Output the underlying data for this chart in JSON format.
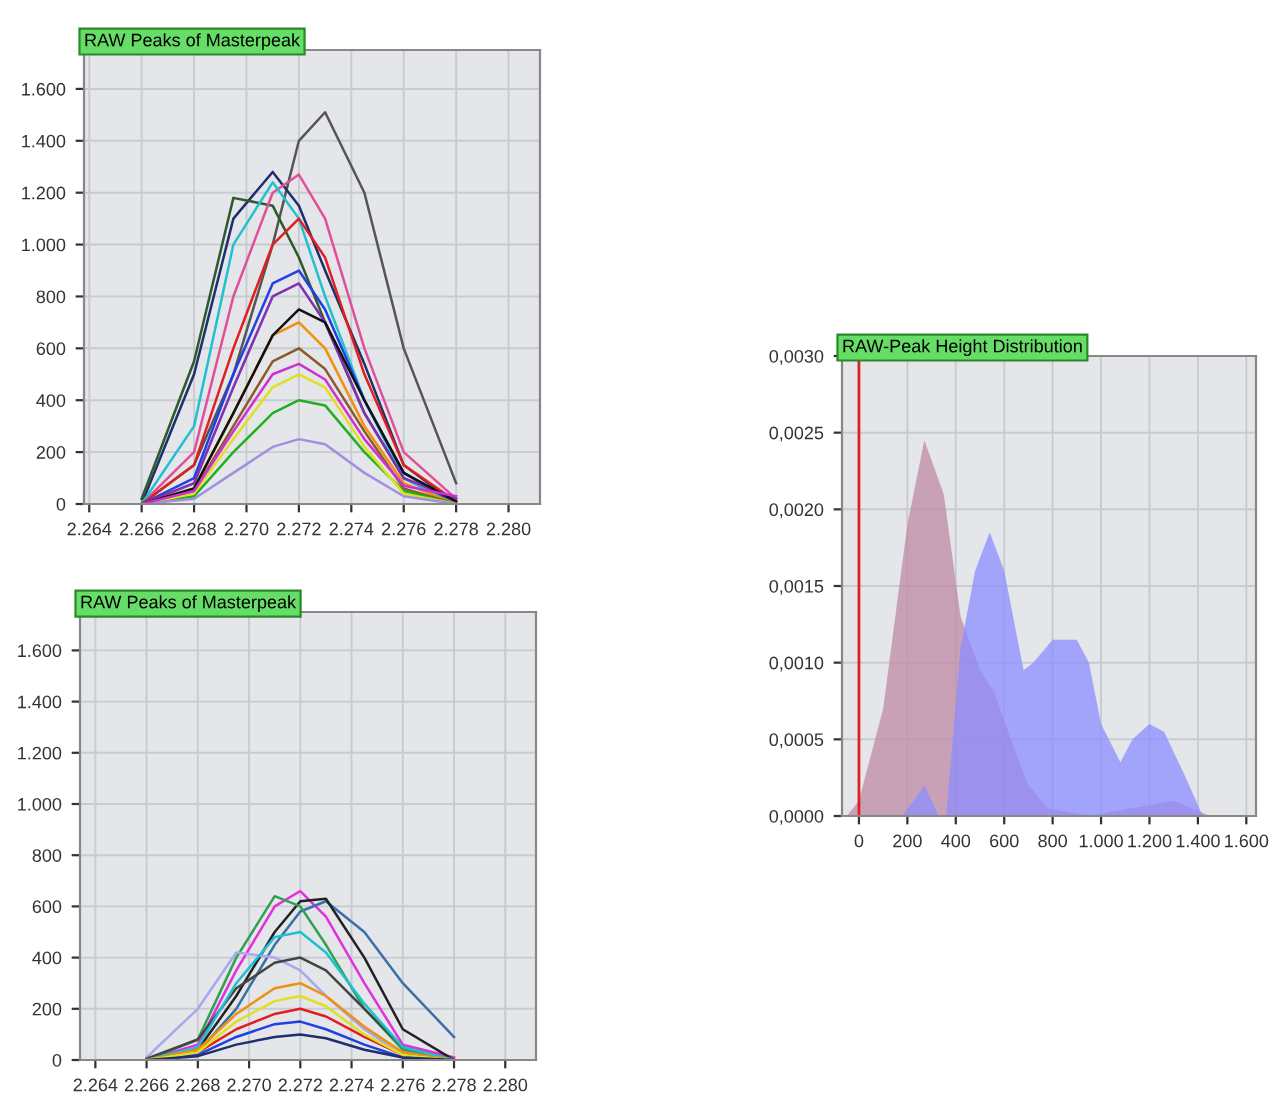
{
  "chart_data": [
    {
      "type": "line",
      "title": "RAW Peaks of Masterpeak",
      "grid": true,
      "x": [
        2266,
        2268,
        2269.5,
        2271,
        2272,
        2273,
        2274.5,
        2276,
        2278
      ],
      "xlim": [
        2263.8,
        2281.2
      ],
      "xticks": [
        {
          "value": 2264,
          "label": "2.264"
        },
        {
          "value": 2266,
          "label": "2.266"
        },
        {
          "value": 2268,
          "label": "2.268"
        },
        {
          "value": 2270,
          "label": "2.270"
        },
        {
          "value": 2272,
          "label": "2.272"
        },
        {
          "value": 2274,
          "label": "2.274"
        },
        {
          "value": 2276,
          "label": "2.276"
        },
        {
          "value": 2278,
          "label": "2.278"
        },
        {
          "value": 2280,
          "label": "2.280"
        }
      ],
      "ylim": [
        0,
        1750
      ],
      "yticks": [
        0,
        200,
        400,
        600,
        800,
        {
          "value": 1000,
          "label": "1.000"
        },
        {
          "value": 1200,
          "label": "1.200"
        },
        {
          "value": 1400,
          "label": "1.400"
        },
        {
          "value": 1600,
          "label": "1.600"
        }
      ],
      "series": [
        {
          "color": "#555555",
          "values": [
            0,
            150,
            500,
            1000,
            1400,
            1510,
            1200,
            600,
            80
          ]
        },
        {
          "color": "#1f2f6e",
          "values": [
            0,
            500,
            1100,
            1280,
            1150,
            900,
            540,
            150,
            0
          ]
        },
        {
          "color": "#2e5a2e",
          "values": [
            20,
            550,
            1180,
            1150,
            950,
            700,
            350,
            100,
            0
          ]
        },
        {
          "color": "#e0509a",
          "values": [
            0,
            200,
            800,
            1200,
            1270,
            1100,
            600,
            200,
            20
          ]
        },
        {
          "color": "#20c0d0",
          "values": [
            0,
            300,
            1000,
            1240,
            1100,
            800,
            400,
            100,
            0
          ]
        },
        {
          "color": "#e02020",
          "values": [
            0,
            150,
            600,
            1000,
            1100,
            950,
            500,
            150,
            10
          ]
        },
        {
          "color": "#2040e0",
          "values": [
            0,
            100,
            500,
            850,
            900,
            750,
            400,
            120,
            0
          ]
        },
        {
          "color": "#8030b0",
          "values": [
            0,
            80,
            450,
            800,
            850,
            700,
            350,
            100,
            20
          ]
        },
        {
          "color": "#f09010",
          "values": [
            0,
            60,
            350,
            650,
            700,
            600,
            300,
            80,
            0
          ]
        },
        {
          "color": "#8a5a2a",
          "values": [
            0,
            50,
            300,
            550,
            600,
            520,
            280,
            60,
            0
          ]
        },
        {
          "color": "#20b020",
          "values": [
            0,
            30,
            200,
            350,
            400,
            380,
            200,
            50,
            0
          ]
        },
        {
          "color": "#e0e020",
          "values": [
            0,
            40,
            250,
            450,
            500,
            450,
            220,
            40,
            0
          ]
        },
        {
          "color": "#111111",
          "values": [
            0,
            60,
            350,
            650,
            750,
            700,
            400,
            120,
            10
          ]
        },
        {
          "color": "#a090e0",
          "values": [
            0,
            20,
            120,
            220,
            250,
            230,
            120,
            30,
            0
          ]
        },
        {
          "color": "#d030d0",
          "values": [
            0,
            50,
            280,
            500,
            540,
            480,
            250,
            70,
            30
          ]
        }
      ]
    },
    {
      "type": "line",
      "title": "RAW Peaks of Masterpeak",
      "grid": true,
      "x": [
        2266,
        2268,
        2269.5,
        2271,
        2272,
        2273,
        2274.5,
        2276,
        2278
      ],
      "xlim": [
        2263.4,
        2281.2
      ],
      "xticks": [
        {
          "value": 2264,
          "label": "2.264"
        },
        {
          "value": 2266,
          "label": "2.266"
        },
        {
          "value": 2268,
          "label": "2.268"
        },
        {
          "value": 2270,
          "label": "2.270"
        },
        {
          "value": 2272,
          "label": "2.272"
        },
        {
          "value": 2274,
          "label": "2.274"
        },
        {
          "value": 2276,
          "label": "2.276"
        },
        {
          "value": 2278,
          "label": "2.278"
        },
        {
          "value": 2280,
          "label": "2.280"
        }
      ],
      "ylim": [
        0,
        1750
      ],
      "yticks": [
        0,
        200,
        400,
        600,
        800,
        {
          "value": 1000,
          "label": "1.000"
        },
        {
          "value": 1200,
          "label": "1.200"
        },
        {
          "value": 1400,
          "label": "1.400"
        },
        {
          "value": 1600,
          "label": "1.600"
        }
      ],
      "series": [
        {
          "color": "#e030e0",
          "values": [
            0,
            60,
            350,
            600,
            660,
            560,
            300,
            60,
            10
          ]
        },
        {
          "color": "#3a70a8",
          "values": [
            0,
            30,
            200,
            450,
            580,
            620,
            500,
            300,
            90
          ]
        },
        {
          "color": "#222222",
          "values": [
            0,
            40,
            250,
            500,
            620,
            630,
            400,
            120,
            0
          ]
        },
        {
          "color": "#30a050",
          "values": [
            0,
            80,
            400,
            640,
            600,
            450,
            200,
            40,
            0
          ]
        },
        {
          "color": "#a8a8f0",
          "values": [
            10,
            200,
            420,
            400,
            350,
            250,
            120,
            20,
            0
          ]
        },
        {
          "color": "#444444",
          "values": [
            5,
            80,
            280,
            380,
            400,
            350,
            200,
            50,
            0
          ]
        },
        {
          "color": "#20c0d0",
          "values": [
            0,
            50,
            300,
            480,
            500,
            420,
            220,
            50,
            0
          ]
        },
        {
          "color": "#f09010",
          "values": [
            0,
            40,
            180,
            280,
            300,
            250,
            130,
            30,
            0
          ]
        },
        {
          "color": "#e02020",
          "values": [
            0,
            30,
            120,
            180,
            200,
            170,
            90,
            20,
            0
          ]
        },
        {
          "color": "#2040e0",
          "values": [
            0,
            20,
            90,
            140,
            150,
            120,
            60,
            10,
            0
          ]
        },
        {
          "color": "#e0e020",
          "values": [
            0,
            30,
            150,
            230,
            250,
            210,
            100,
            20,
            0
          ]
        },
        {
          "color": "#1f2f6e",
          "values": [
            0,
            15,
            60,
            90,
            100,
            85,
            40,
            10,
            0
          ]
        }
      ]
    },
    {
      "type": "area",
      "title": "RAW-Peak Height Distribution",
      "grid": true,
      "xlim": [
        -70,
        1640
      ],
      "xticks": [
        0,
        200,
        400,
        600,
        800,
        {
          "value": 1000,
          "label": "1.000"
        },
        {
          "value": 1200,
          "label": "1.200"
        },
        {
          "value": 1400,
          "label": "1.400"
        },
        {
          "value": 1600,
          "label": "1.600"
        }
      ],
      "ylim": [
        0,
        0.003
      ],
      "yticks": [
        {
          "value": 0,
          "label": "0,0000"
        },
        {
          "value": 0.0005,
          "label": "0,0005"
        },
        {
          "value": 0.001,
          "label": "0,0010"
        },
        {
          "value": 0.0015,
          "label": "0,0015"
        },
        {
          "value": 0.002,
          "label": "0,0020"
        },
        {
          "value": 0.0025,
          "label": "0,0025"
        },
        {
          "value": 0.003,
          "label": "0,0030"
        }
      ],
      "ref_lines": [
        {
          "axis": "x",
          "value": 0,
          "color": "#e02020"
        }
      ],
      "series": [
        {
          "color": "#c08aa5",
          "x": [
            -50,
            0,
            100,
            200,
            270,
            350,
            420,
            500,
            560,
            650,
            700,
            780,
            950,
            1300,
            1450,
            1600
          ],
          "values": [
            0,
            0.0001,
            0.0007,
            0.0019,
            0.00245,
            0.0021,
            0.0013,
            0.00095,
            0.0008,
            0.0004,
            0.0002,
            5e-05,
            0,
            0.0001,
            0,
            0
          ]
        },
        {
          "color": "#8c8cff",
          "x": [
            180,
            270,
            330,
            360,
            420,
            480,
            540,
            600,
            680,
            720,
            800,
            900,
            950,
            1000,
            1080,
            1130,
            1200,
            1260,
            1350,
            1420
          ],
          "values": [
            0,
            0.0002,
            0,
            0,
            0.0011,
            0.0016,
            0.00185,
            0.0016,
            0.00095,
            0.001,
            0.00115,
            0.00115,
            0.001,
            0.0006,
            0.00035,
            0.0005,
            0.0006,
            0.00055,
            0.00025,
            0
          ]
        }
      ]
    }
  ]
}
